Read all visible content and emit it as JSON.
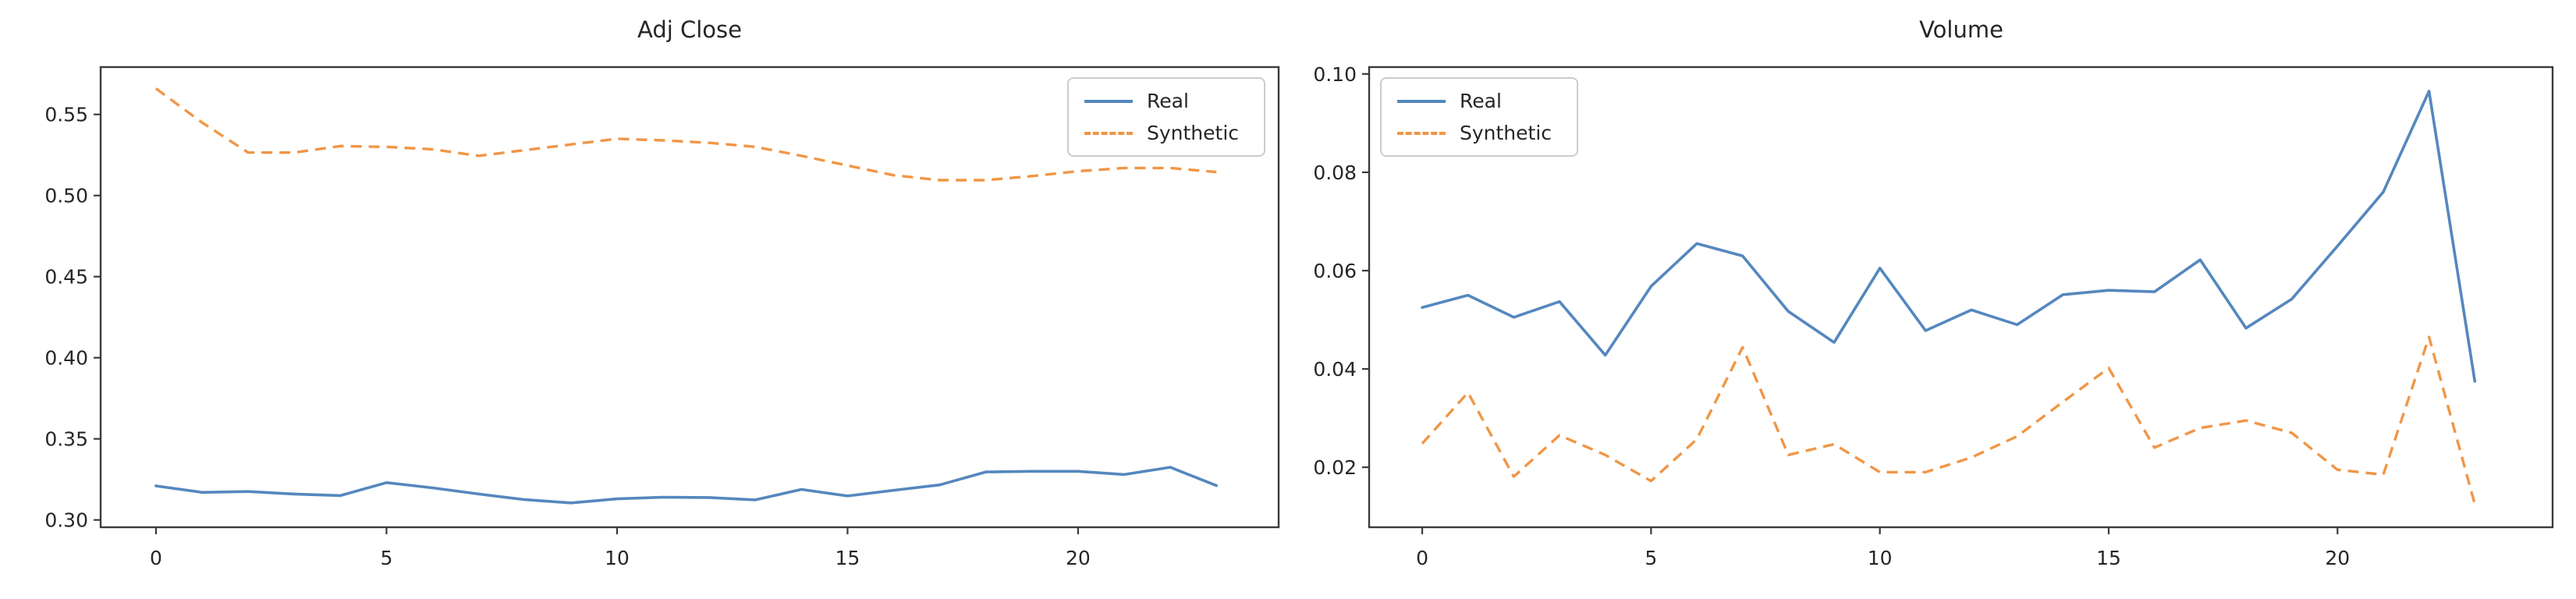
{
  "figure": {
    "background": "#ffffff",
    "text_color": "#262626",
    "spine_color": "#3b3b3b"
  },
  "chart_data": [
    {
      "type": "line",
      "title": "Adj Close",
      "x": [
        0,
        1,
        2,
        3,
        4,
        5,
        6,
        7,
        8,
        9,
        10,
        11,
        12,
        13,
        14,
        15,
        16,
        17,
        18,
        19,
        20,
        21,
        22,
        23
      ],
      "series": [
        {
          "name": "Real",
          "style": "solid",
          "color": "#5587be",
          "values": [
            0.321,
            0.317,
            0.3175,
            0.316,
            0.315,
            0.323,
            0.3198,
            0.316,
            0.3125,
            0.3105,
            0.313,
            0.314,
            0.3138,
            0.3124,
            0.3188,
            0.3148,
            0.3183,
            0.3216,
            0.3296,
            0.33,
            0.33,
            0.328,
            0.3325,
            0.3212
          ]
        },
        {
          "name": "Synthetic",
          "style": "dashed",
          "color": "#f09646",
          "values": [
            0.566,
            0.545,
            0.5265,
            0.5265,
            0.5305,
            0.53,
            0.5285,
            0.5245,
            0.528,
            0.5315,
            0.535,
            0.534,
            0.5325,
            0.53,
            0.5245,
            0.5185,
            0.5125,
            0.5095,
            0.5095,
            0.512,
            0.515,
            0.517,
            0.517,
            0.5145
          ]
        }
      ],
      "xticks": [
        0,
        5,
        10,
        15,
        20
      ],
      "xtick_labels": [
        "0",
        "5",
        "10",
        "15",
        "20"
      ],
      "yticks": [
        0.3,
        0.35,
        0.4,
        0.45,
        0.5,
        0.55
      ],
      "ytick_labels": [
        "0.30",
        "0.35",
        "0.40",
        "0.45",
        "0.50",
        "0.55"
      ],
      "xlim": [
        -1.2,
        24.35
      ],
      "ylim": [
        0.2955,
        0.5792
      ],
      "grid": false,
      "legend": {
        "position": "upper right",
        "entries": [
          "Real",
          "Synthetic"
        ]
      }
    },
    {
      "type": "line",
      "title": "Volume",
      "x": [
        0,
        1,
        2,
        3,
        4,
        5,
        6,
        7,
        8,
        9,
        10,
        11,
        12,
        13,
        14,
        15,
        16,
        17,
        18,
        19,
        20,
        21,
        22,
        23
      ],
      "series": [
        {
          "name": "Real",
          "style": "solid",
          "color": "#5587be",
          "values": [
            0.0525,
            0.055,
            0.0505,
            0.0537,
            0.0428,
            0.0568,
            0.0655,
            0.063,
            0.0517,
            0.0454,
            0.0605,
            0.0478,
            0.052,
            0.049,
            0.0551,
            0.056,
            0.0557,
            0.0622,
            0.0483,
            0.0542,
            0.065,
            0.076,
            0.0965,
            0.0375
          ]
        },
        {
          "name": "Synthetic",
          "style": "dashed",
          "color": "#f09646",
          "values": [
            0.0248,
            0.0352,
            0.0181,
            0.0265,
            0.0225,
            0.0172,
            0.0257,
            0.0444,
            0.0225,
            0.0247,
            0.019,
            0.019,
            0.022,
            0.0263,
            0.0333,
            0.0402,
            0.024,
            0.028,
            0.0295,
            0.027,
            0.0195,
            0.0185,
            0.0465,
            0.0125
          ]
        }
      ],
      "xticks": [
        0,
        5,
        10,
        15,
        20
      ],
      "xtick_labels": [
        "0",
        "5",
        "10",
        "15",
        "20"
      ],
      "yticks": [
        0.02,
        0.04,
        0.06,
        0.08,
        0.1
      ],
      "ytick_labels": [
        "0.02",
        "0.04",
        "0.06",
        "0.08",
        "0.10"
      ],
      "xlim": [
        -1.16,
        24.7
      ],
      "ylim": [
        0.0078,
        0.1014
      ],
      "grid": false,
      "legend": {
        "position": "upper left",
        "entries": [
          "Real",
          "Synthetic"
        ]
      }
    }
  ]
}
